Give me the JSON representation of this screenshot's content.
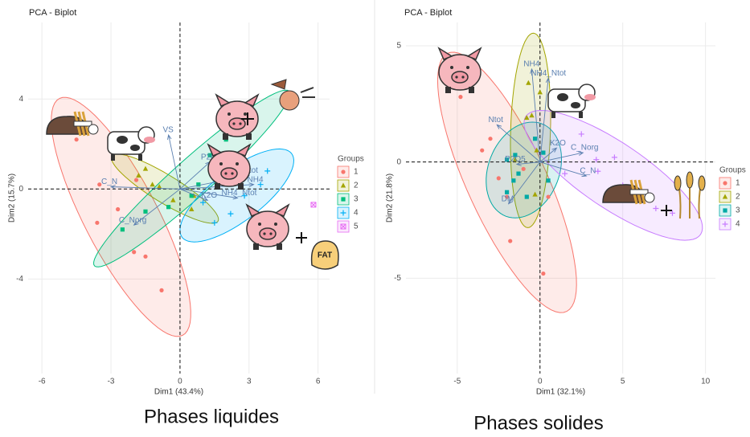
{
  "chart_data": [
    {
      "type": "biplot",
      "title": "PCA - Biplot",
      "x_label": "Dim1 (43.4%)",
      "y_label": "Dim2 (15.7%)",
      "caption": "Phases liquides",
      "annotations": [
        "FAT"
      ],
      "xlim": [
        -6.6,
        6.5
      ],
      "ylim": [
        -8.2,
        7.4
      ],
      "xticks": [
        -6,
        -3,
        0,
        3,
        6
      ],
      "yticks": [
        -4,
        0,
        4
      ],
      "grid": true,
      "legend_title": "Groups",
      "series": [
        {
          "name": "1",
          "color": "#F8766D",
          "shape": "circle",
          "x": [
            -4.5,
            -3.5,
            -2.7,
            -2.0,
            -1.5,
            -1.9,
            -3.6,
            -0.8
          ],
          "y": [
            2.2,
            0.2,
            -0.9,
            -2.8,
            -3.0,
            0.4,
            -1.5,
            -4.5
          ]
        },
        {
          "name": "2",
          "color": "#A3A500",
          "shape": "triangle",
          "x": [
            -1.8,
            -1.2,
            -0.9,
            -0.3,
            0.5,
            -1.5,
            0.6
          ],
          "y": [
            0.6,
            0.2,
            0.1,
            -0.5,
            -0.9,
            0.9,
            -0.3
          ]
        },
        {
          "name": "3",
          "color": "#00BF7D",
          "shape": "square",
          "x": [
            1.5,
            1.3,
            0.5,
            -1.5,
            3.0,
            0.8,
            2.0,
            -0.5,
            -2.5
          ],
          "y": [
            1.2,
            1.5,
            -0.3,
            -1.0,
            3.0,
            0.2,
            2.2,
            -0.8,
            -1.8
          ]
        },
        {
          "name": "4",
          "color": "#00B0F6",
          "shape": "plus",
          "x": [
            1.5,
            2.5,
            3.5,
            1.0,
            2.2,
            3.8,
            2.8
          ],
          "y": [
            -1.5,
            0.5,
            0.2,
            -0.6,
            -1.1,
            0.8,
            -0.3
          ]
        },
        {
          "name": "5",
          "color": "#E76BF3",
          "shape": "boxcross",
          "x": [
            5.8
          ],
          "y": [
            -0.7
          ]
        }
      ],
      "variables": [
        {
          "name": "VS",
          "x": -0.5,
          "y": 2.4
        },
        {
          "name": "P2O5",
          "x": 1.3,
          "y": 1.2
        },
        {
          "name": "Ntot",
          "x": 3.0,
          "y": 0.6
        },
        {
          "name": "NH4",
          "x": 3.2,
          "y": 0.2
        },
        {
          "name": "NH4_Ntot",
          "x": 2.5,
          "y": -0.4
        },
        {
          "name": "K2O",
          "x": 1.2,
          "y": -0.5
        },
        {
          "name": "C_Norg",
          "x": -2.0,
          "y": -1.6
        },
        {
          "name": "C_N",
          "x": -3.0,
          "y": 0.1
        }
      ]
    },
    {
      "type": "biplot",
      "title": "PCA - Biplot",
      "x_label": "Dim1 (32.1%)",
      "y_label": "Dim2 (21.8%)",
      "caption": "Phases solides",
      "xlim": [
        -8.1,
        10.6
      ],
      "ylim": [
        -9.1,
        6.0
      ],
      "xticks": [
        -5,
        0,
        5,
        10
      ],
      "yticks": [
        -5,
        0,
        5
      ],
      "grid": true,
      "legend_title": "Groups",
      "series": [
        {
          "name": "1",
          "color": "#F8766D",
          "shape": "circle",
          "x": [
            -3.5,
            -2.0,
            -1.8,
            -2.5,
            0.5,
            -1.0,
            -3.0,
            -4.8,
            0.2
          ],
          "y": [
            0.5,
            -1.5,
            -3.4,
            -0.7,
            -1.5,
            -0.3,
            1.0,
            2.8,
            -4.8
          ]
        },
        {
          "name": "2",
          "color": "#A3A500",
          "shape": "triangle",
          "x": [
            -0.7,
            -0.5,
            -0.8,
            -1.5,
            -0.3,
            0.0,
            -0.2
          ],
          "y": [
            3.4,
            2.0,
            1.9,
            0.1,
            -1.4,
            3.0,
            0.5
          ]
        },
        {
          "name": "3",
          "color": "#00A9A5",
          "shape": "square",
          "x": [
            -2.0,
            -1.5,
            -1.3,
            -0.8,
            -1.6,
            0.2,
            -0.3,
            0.5,
            -2.0
          ],
          "y": [
            0.1,
            0.3,
            -0.5,
            -1.5,
            -0.8,
            0.4,
            1.0,
            -0.8,
            -1.3
          ]
        },
        {
          "name": "4",
          "color": "#C77CFF",
          "shape": "plus",
          "x": [
            3.4,
            1.5,
            3.5,
            5.0,
            7.0,
            2.5,
            4.5,
            8.0
          ],
          "y": [
            0.1,
            -0.5,
            -0.4,
            -1.0,
            -2.0,
            1.2,
            0.2,
            -2.2
          ]
        }
      ],
      "variables": [
        {
          "name": "NH4",
          "x": -0.5,
          "y": 4.0
        },
        {
          "name": "NH4_Ntot",
          "x": 0.5,
          "y": 3.6
        },
        {
          "name": "Ntot",
          "x": -2.6,
          "y": 1.6
        },
        {
          "name": "K2O",
          "x": 1.0,
          "y": 0.6
        },
        {
          "name": "C_Norg",
          "x": 2.6,
          "y": 0.4
        },
        {
          "name": "C_N",
          "x": 2.8,
          "y": -0.6
        },
        {
          "name": "P2O5",
          "x": -1.4,
          "y": -0.1
        },
        {
          "name": "DM",
          "x": -1.9,
          "y": -1.8
        }
      ]
    }
  ]
}
